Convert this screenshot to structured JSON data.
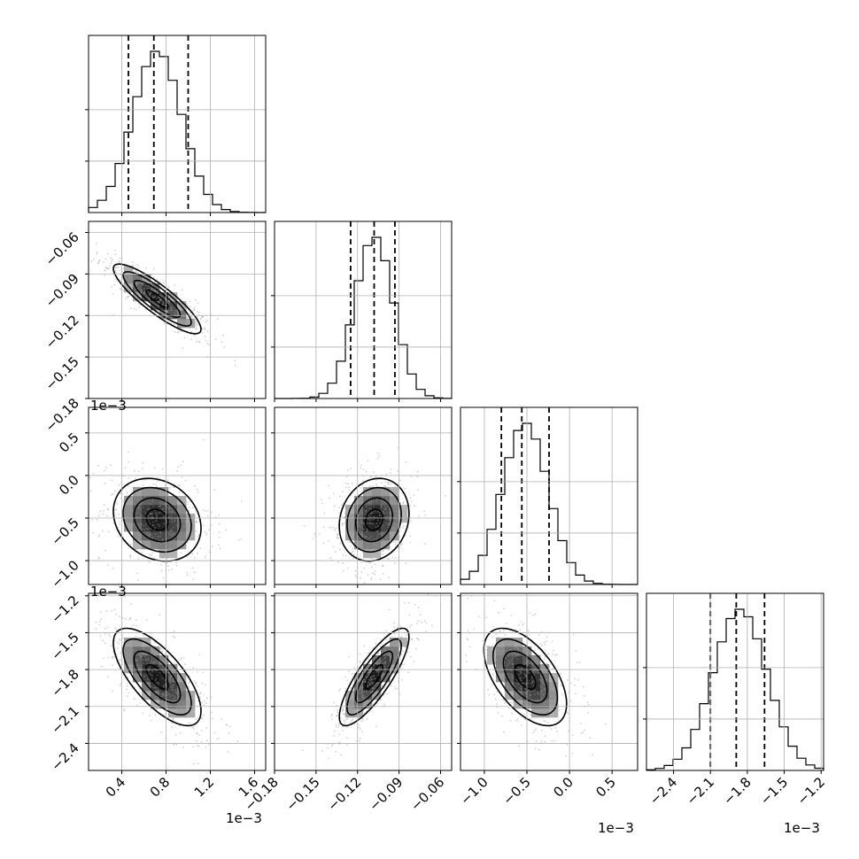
{
  "chart_data": {
    "type": "corner",
    "n_params": 4,
    "params": [
      {
        "ticks": [
          0.4,
          0.8,
          1.2,
          1.6
        ],
        "tick_labels": [
          "0.4",
          "0.8",
          "1.2",
          "1.6"
        ],
        "offset": "1e−3",
        "mean": 0.72,
        "sd": 0.22,
        "quantiles": [
          0.46,
          0.69,
          1.0
        ],
        "range": [
          0.1,
          1.7
        ]
      },
      {
        "ticks": [
          -0.18,
          -0.15,
          -0.12,
          -0.09,
          -0.06
        ],
        "tick_labels": [
          "−0.18",
          "−0.15",
          "−0.12",
          "−0.09",
          "−0.06"
        ],
        "offset": "",
        "mean": -0.108,
        "sd": 0.014,
        "quantiles": [
          -0.125,
          -0.108,
          -0.093
        ],
        "range": [
          -0.18,
          -0.052
        ]
      },
      {
        "ticks": [
          -1.0,
          -0.5,
          0.0,
          0.5
        ],
        "tick_labels": [
          "−1.0",
          "−0.5",
          "0.0",
          "0.5"
        ],
        "offset": "1e−3",
        "mean": -0.52,
        "sd": 0.27,
        "quantiles": [
          -0.8,
          -0.56,
          -0.24
        ],
        "range": [
          -1.28,
          0.8
        ]
      },
      {
        "ticks": [
          -2.4,
          -2.1,
          -1.8,
          -1.5,
          -1.2
        ],
        "tick_labels": [
          "−2.4",
          "−2.1",
          "−1.8",
          "−1.5",
          "−1.2"
        ],
        "offset": "1e−3",
        "mean": -1.86,
        "sd": 0.22,
        "quantiles": [
          -2.1,
          -1.89,
          -1.66
        ],
        "range": [
          -2.62,
          -1.18
        ]
      }
    ],
    "correlations": [
      [
        0,
        1,
        -0.87
      ],
      [
        0,
        2,
        -0.2
      ],
      [
        1,
        2,
        0.15
      ],
      [
        0,
        3,
        -0.7
      ],
      [
        1,
        3,
        0.82
      ],
      [
        2,
        3,
        -0.55
      ]
    ],
    "histogram_bins": 20,
    "contour_levels": 4,
    "grid": true,
    "legend": "none"
  }
}
